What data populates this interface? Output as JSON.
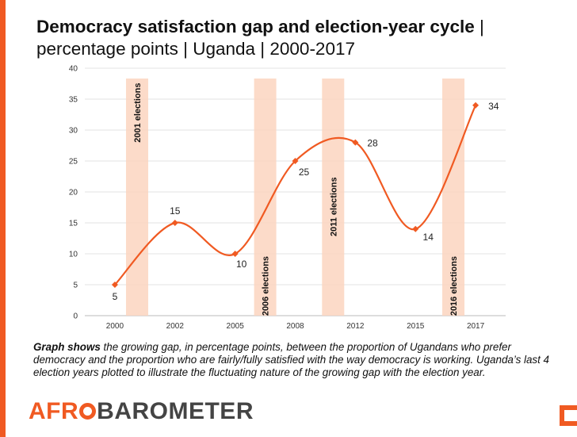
{
  "title": {
    "bold": "Democracy satisfaction gap and election-year cycle",
    "rest": " | percentage points | Uganda | 2000-2017"
  },
  "caption": {
    "bold": "Graph shows",
    "text": " the growing gap, in percentage points, between the proportion of Ugandans who prefer democracy and the proportion who are fairly/fully satisfied with the way democracy is working. Uganda’s last 4 election years plotted to illustrate the fluctuating nature of the growing gap with the election year."
  },
  "logo": {
    "part1": "AFR",
    "part2": "BAROMETER"
  },
  "colors": {
    "accent": "#f05a22",
    "band": "#fbd5c0"
  },
  "chart_data": {
    "type": "line",
    "categories": [
      "2000",
      "2002",
      "2005",
      "2008",
      "2012",
      "2015",
      "2017"
    ],
    "values": [
      5,
      15,
      10,
      25,
      28,
      14,
      34
    ],
    "ylim": [
      0,
      40
    ],
    "yticks": [
      0,
      5,
      10,
      15,
      20,
      25,
      30,
      35,
      40
    ],
    "smooth": true,
    "data_labels": true,
    "election_bands": [
      {
        "label": "2001 elections",
        "position": 0.37
      },
      {
        "label": "2006 elections",
        "position": 2.5
      },
      {
        "label": "2011 elections",
        "position": 3.63
      },
      {
        "label": "2016 elections",
        "position": 5.63
      }
    ]
  }
}
